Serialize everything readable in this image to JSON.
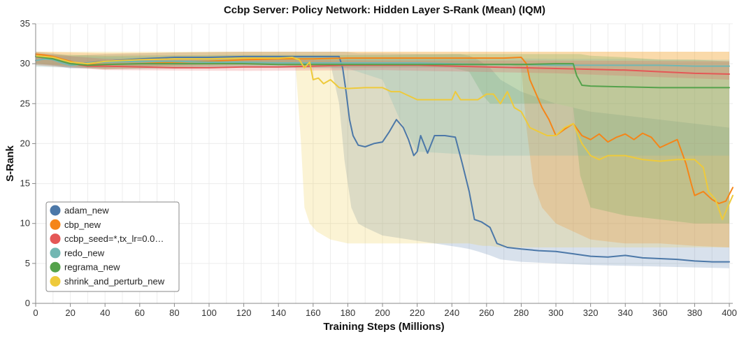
{
  "chart_data": {
    "type": "line",
    "title": "Ccbp Server: Policy Network: Hidden Layer S-Rank (Mean) (IQM)",
    "xlabel": "Training Steps (Millions)",
    "ylabel": "S-Rank",
    "xlim": [
      0,
      402
    ],
    "ylim": [
      0,
      35
    ],
    "x_ticks": [
      0,
      20,
      40,
      60,
      80,
      100,
      120,
      140,
      160,
      180,
      200,
      220,
      240,
      260,
      280,
      300,
      320,
      340,
      360,
      380,
      400
    ],
    "y_ticks": [
      0,
      5,
      10,
      15,
      20,
      25,
      30,
      35
    ],
    "grid": true,
    "legend_position": "bottom-left",
    "series": [
      {
        "name": "adam_new",
        "color": "#4c78a8",
        "x": [
          0,
          5,
          10,
          15,
          20,
          25,
          30,
          40,
          60,
          80,
          100,
          120,
          140,
          160,
          170,
          175,
          177,
          179,
          181,
          183,
          186,
          190,
          195,
          200,
          204,
          208,
          212,
          215,
          218,
          220,
          222,
          226,
          230,
          236,
          242,
          246,
          250,
          253,
          257,
          262,
          266,
          272,
          280,
          290,
          300,
          310,
          320,
          330,
          340,
          350,
          360,
          370,
          380,
          390,
          400
        ],
        "y": [
          31.0,
          30.9,
          30.7,
          30.5,
          30.2,
          30.0,
          30.1,
          30.3,
          30.6,
          30.8,
          30.8,
          30.9,
          30.9,
          30.9,
          30.9,
          30.9,
          29.5,
          26.5,
          23.0,
          21.0,
          19.8,
          19.6,
          20.0,
          20.2,
          21.5,
          23.0,
          22.0,
          20.5,
          18.5,
          19.0,
          21.0,
          18.8,
          21.0,
          21.0,
          20.8,
          17.5,
          14.0,
          10.5,
          10.2,
          9.5,
          7.5,
          7.0,
          6.8,
          6.6,
          6.5,
          6.2,
          5.9,
          5.8,
          6.0,
          5.7,
          5.6,
          5.5,
          5.3,
          5.2,
          5.2
        ]
      },
      {
        "name": "cbp_new",
        "color": "#f58518",
        "x": [
          0,
          5,
          10,
          15,
          20,
          25,
          30,
          40,
          60,
          80,
          100,
          120,
          140,
          160,
          180,
          200,
          220,
          240,
          260,
          270,
          280,
          283,
          285,
          288,
          292,
          296,
          300,
          305,
          310,
          315,
          320,
          325,
          330,
          335,
          340,
          345,
          350,
          355,
          360,
          365,
          370,
          375,
          378,
          380,
          385,
          390,
          394,
          398,
          402
        ],
        "y": [
          31.2,
          31.1,
          30.9,
          30.6,
          30.3,
          30.0,
          29.9,
          29.9,
          30.0,
          30.2,
          30.3,
          30.5,
          30.6,
          30.6,
          30.7,
          30.7,
          30.7,
          30.7,
          30.7,
          30.7,
          30.8,
          30.0,
          28.0,
          26.5,
          24.5,
          23.0,
          21.0,
          21.8,
          22.5,
          21.0,
          20.5,
          21.2,
          20.2,
          20.8,
          21.2,
          20.5,
          21.3,
          20.8,
          19.5,
          20.0,
          20.5,
          17.5,
          15.0,
          13.5,
          14.0,
          13.0,
          12.5,
          12.8,
          14.5
        ]
      },
      {
        "name": "ccbp_seed=*,tx_lr=0.0…",
        "color": "#e45756",
        "x": [
          0,
          10,
          20,
          30,
          40,
          60,
          80,
          100,
          120,
          140,
          160,
          180,
          200,
          220,
          240,
          260,
          280,
          300,
          320,
          340,
          360,
          380,
          400
        ],
        "y": [
          30.9,
          30.5,
          30.0,
          29.7,
          29.7,
          29.6,
          29.5,
          29.5,
          29.6,
          29.6,
          29.7,
          29.8,
          29.8,
          29.8,
          29.7,
          29.6,
          29.5,
          29.4,
          29.3,
          29.2,
          29.0,
          28.8,
          28.7
        ]
      },
      {
        "name": "redo_new",
        "color": "#72b7b2",
        "x": [
          0,
          5,
          10,
          15,
          20,
          25,
          30,
          40,
          60,
          80,
          100,
          120,
          140,
          160,
          180,
          200,
          220,
          240,
          260,
          280,
          300,
          320,
          340,
          360,
          380,
          400
        ],
        "y": [
          30.4,
          30.6,
          30.5,
          30.1,
          29.8,
          29.9,
          30.1,
          30.2,
          30.3,
          30.3,
          30.2,
          30.2,
          30.1,
          30.1,
          30.1,
          30.1,
          30.1,
          30.0,
          29.9,
          29.9,
          29.8,
          29.8,
          29.8,
          29.8,
          29.7,
          29.7
        ]
      },
      {
        "name": "regrama_new",
        "color": "#54a24b",
        "x": [
          0,
          10,
          20,
          30,
          40,
          60,
          80,
          100,
          120,
          140,
          160,
          180,
          200,
          220,
          240,
          260,
          280,
          300,
          310,
          312,
          315,
          320,
          340,
          360,
          380,
          400
        ],
        "y": [
          30.9,
          30.6,
          30.0,
          29.8,
          29.9,
          30.0,
          30.0,
          30.0,
          30.0,
          29.9,
          29.9,
          29.9,
          29.9,
          29.9,
          29.9,
          29.9,
          29.9,
          30.0,
          30.0,
          28.5,
          27.3,
          27.2,
          27.1,
          27.0,
          27.0,
          27.0
        ]
      },
      {
        "name": "shrink_and_perturb_new",
        "color": "#eeca3b",
        "x": [
          0,
          10,
          20,
          30,
          40,
          60,
          80,
          100,
          120,
          140,
          148,
          152,
          155,
          158,
          160,
          163,
          166,
          170,
          175,
          180,
          190,
          200,
          205,
          210,
          220,
          230,
          240,
          242,
          245,
          250,
          255,
          260,
          264,
          268,
          272,
          276,
          280,
          285,
          290,
          295,
          300,
          305,
          310,
          315,
          320,
          325,
          330,
          340,
          350,
          360,
          370,
          380,
          385,
          388,
          392,
          396,
          400,
          402
        ],
        "y": [
          31.0,
          30.8,
          30.2,
          30.0,
          30.3,
          30.5,
          30.6,
          30.6,
          30.7,
          30.7,
          30.8,
          30.5,
          29.5,
          30.2,
          28.0,
          28.2,
          27.5,
          28.0,
          27.0,
          26.9,
          27.0,
          27.0,
          26.5,
          26.5,
          25.5,
          25.5,
          25.5,
          26.5,
          25.5,
          25.5,
          25.5,
          26.2,
          26.2,
          25.0,
          26.5,
          24.5,
          24.0,
          22.0,
          21.5,
          21.0,
          21.0,
          22.0,
          22.5,
          20.0,
          18.5,
          18.0,
          18.5,
          18.5,
          18.0,
          17.8,
          18.0,
          18.0,
          17.0,
          14.0,
          13.0,
          10.5,
          12.5,
          13.5
        ]
      }
    ],
    "bands": [
      {
        "series": "adam_new",
        "color": "#4c78a8",
        "x": [
          0,
          10,
          20,
          40,
          80,
          120,
          160,
          170,
          175,
          178,
          182,
          186,
          190,
          200,
          230,
          245,
          250,
          255,
          262,
          268,
          280,
          300,
          320,
          340,
          360,
          380,
          400
        ],
        "low": [
          30.0,
          29.8,
          29.4,
          29.5,
          29.8,
          30.0,
          30.0,
          30.0,
          25.0,
          18.0,
          12.0,
          10.0,
          9.5,
          8.5,
          7.5,
          7.0,
          6.8,
          6.5,
          6.0,
          5.5,
          5.2,
          5.0,
          4.8,
          4.7,
          4.6,
          4.5,
          4.4
        ],
        "high": [
          31.5,
          31.3,
          31.0,
          31.2,
          31.4,
          31.5,
          31.5,
          31.5,
          31.5,
          31.5,
          31.4,
          31.3,
          31.3,
          31.3,
          31.2,
          31.2,
          31.0,
          30.5,
          29.5,
          28.0,
          26.5,
          25.0,
          24.0,
          23.5,
          23.0,
          22.5,
          22.0
        ]
      },
      {
        "series": "shrink_and_perturb_new",
        "color": "#eeca3b",
        "x": [
          0,
          40,
          120,
          140,
          150,
          153,
          155,
          158,
          162,
          170,
          180,
          200,
          220,
          240,
          250,
          255,
          258,
          262,
          268,
          280,
          300,
          320,
          340,
          360,
          380,
          400
        ],
        "low": [
          30.0,
          29.5,
          30.0,
          30.0,
          29.5,
          20.0,
          12.0,
          10.0,
          9.0,
          8.0,
          7.5,
          7.5,
          7.5,
          7.5,
          7.5,
          7.3,
          7.2,
          7.2,
          7.0,
          7.0,
          7.0,
          7.0,
          7.0,
          7.0,
          7.0,
          7.0
        ],
        "high": [
          31.5,
          31.5,
          31.5,
          31.5,
          31.5,
          31.5,
          31.5,
          31.5,
          31.5,
          31.5,
          31.5,
          31.5,
          31.5,
          31.5,
          31.5,
          31.5,
          31.5,
          31.5,
          31.5,
          31.5,
          31.5,
          31.5,
          31.5,
          31.5,
          31.5,
          31.5
        ]
      },
      {
        "series": "cbp_new",
        "color": "#f58518",
        "x": [
          0,
          40,
          120,
          200,
          260,
          270,
          280,
          283,
          287,
          292,
          300,
          320,
          340,
          360,
          380,
          400
        ],
        "low": [
          30.0,
          29.3,
          29.8,
          30.0,
          30.0,
          30.0,
          29.5,
          22.0,
          15.0,
          12.0,
          10.0,
          8.0,
          7.5,
          7.5,
          7.2,
          7.0
        ],
        "high": [
          31.5,
          31.3,
          31.5,
          31.5,
          31.5,
          31.5,
          31.5,
          31.5,
          31.5,
          31.5,
          31.5,
          31.5,
          31.5,
          31.5,
          31.5,
          31.5
        ]
      },
      {
        "series": "regrama_new",
        "color": "#54a24b",
        "x": [
          0,
          40,
          120,
          200,
          240,
          250,
          258,
          262,
          300,
          310,
          314,
          320,
          340,
          360,
          380,
          400
        ],
        "low": [
          29.8,
          29.3,
          29.5,
          29.5,
          29.5,
          29.0,
          26.0,
          25.0,
          25.0,
          24.5,
          16.0,
          12.0,
          11.0,
          10.5,
          10.0,
          10.0
        ],
        "high": [
          31.2,
          31.0,
          31.1,
          31.1,
          31.2,
          31.2,
          31.2,
          31.2,
          31.2,
          31.2,
          31.2,
          31.0,
          30.8,
          30.5,
          30.5,
          30.3
        ]
      },
      {
        "series": "redo_new",
        "color": "#72b7b2",
        "x": [
          0,
          40,
          120,
          180,
          200,
          210,
          220,
          260,
          300,
          340,
          380,
          400
        ],
        "low": [
          29.6,
          29.4,
          29.5,
          29.4,
          28.0,
          23.0,
          19.0,
          18.5,
          18.5,
          18.5,
          18.5,
          18.5
        ],
        "high": [
          31.0,
          30.8,
          30.8,
          30.8,
          30.8,
          30.8,
          30.7,
          30.7,
          30.6,
          30.6,
          30.5,
          30.5
        ]
      },
      {
        "series": "ccbp_seed=*,tx_lr=0.0…",
        "color": "#e45756",
        "x": [
          0,
          40,
          120,
          200,
          300,
          400
        ],
        "low": [
          29.8,
          29.2,
          29.1,
          29.2,
          28.8,
          28.0
        ],
        "high": [
          31.3,
          30.6,
          30.5,
          30.4,
          30.4,
          30.3
        ]
      }
    ]
  }
}
